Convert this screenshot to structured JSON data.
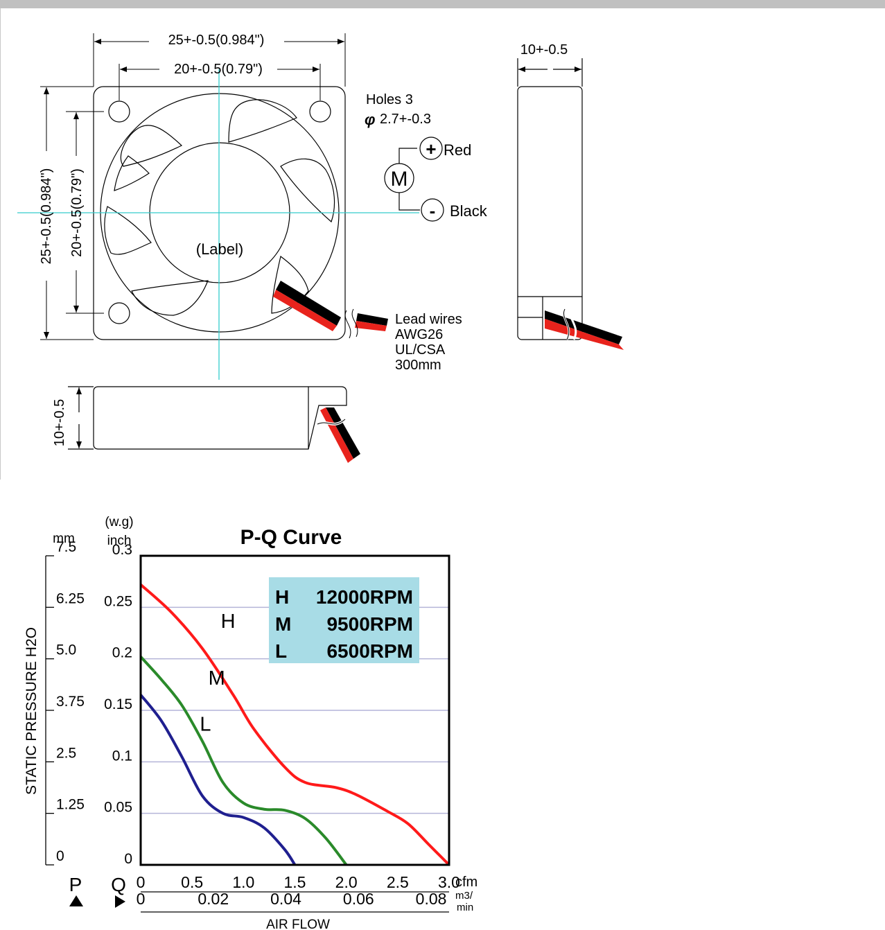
{
  "drawing": {
    "dim_width_outer": "25+-0.5(0.984\")",
    "dim_width_inner": "20+-0.5(0.79\")",
    "dim_height_outer": "25+-0.5(0.984\")",
    "dim_height_inner": "20+-0.5(0.79\")",
    "dim_depth_side": "10+-0.5",
    "dim_depth_bottom": "10+-0.5",
    "holes_label": "Holes 3",
    "holes_dim": "2.7+-0.3",
    "phi_symbol": "φ",
    "motor_symbol": "M",
    "plus_symbol": "+",
    "minus_symbol": "-",
    "red_label": "Red",
    "black_label": "Black",
    "hub_label": "(Label)",
    "lead_wires": [
      "Lead wires",
      "AWG26",
      "UL/CSA",
      "300mm"
    ]
  },
  "chart": {
    "unit_mm": "mm",
    "unit_wg": "(w.g)",
    "unit_inch": "inch",
    "legend": [
      {
        "key": "H",
        "rpm": "12000RPM"
      },
      {
        "key": "M",
        "rpm": "9500RPM"
      },
      {
        "key": "L",
        "rpm": "6500RPM"
      }
    ],
    "mm_ticks": [
      "7.5",
      "6.25",
      "5.0",
      "3.75",
      "2.5",
      "1.25",
      "0"
    ],
    "inch_ticks": [
      "0.3",
      "0.25",
      "0.2",
      "0.15",
      "0.1",
      "0.05",
      "0"
    ],
    "cfm_ticks": [
      "0",
      "0.5",
      "1.0",
      "1.5",
      "2.0",
      "2.5",
      "3.0"
    ],
    "m3_ticks": [
      "0",
      "0.02",
      "0.04",
      "0.06",
      "0.08"
    ],
    "cfm_unit": "cfm",
    "m3_unit_1": "m3/",
    "m3_unit_2": "min",
    "p_label": "P",
    "q_label": "Q"
  },
  "chart_data": {
    "type": "line",
    "title": "P-Q Curve",
    "xlabel": "AIR FLOW",
    "ylabel": "STATIC PRESSURE H2O",
    "x_unit": "cfm",
    "y_unit": "inch",
    "xlim": [
      0,
      3.0
    ],
    "ylim": [
      0,
      0.3
    ],
    "grid": true,
    "legend_position": "top-right",
    "series": [
      {
        "name": "H",
        "color": "#ff1a1a",
        "x": [
          0,
          0.3,
          0.6,
          0.9,
          1.1,
          1.4,
          1.6,
          1.9,
          2.1,
          2.4,
          2.6,
          2.8,
          3.0
        ],
        "y": [
          0.272,
          0.245,
          0.21,
          0.165,
          0.132,
          0.095,
          0.08,
          0.075,
          0.068,
          0.052,
          0.04,
          0.02,
          0
        ]
      },
      {
        "name": "M",
        "color": "#2a8a2a",
        "x": [
          0,
          0.2,
          0.4,
          0.6,
          0.8,
          1.0,
          1.2,
          1.4,
          1.6,
          1.8,
          2.0
        ],
        "y": [
          0.202,
          0.18,
          0.155,
          0.12,
          0.08,
          0.06,
          0.054,
          0.053,
          0.045,
          0.026,
          0
        ]
      },
      {
        "name": "L",
        "color": "#1f1f8f",
        "x": [
          0,
          0.2,
          0.4,
          0.6,
          0.8,
          1.0,
          1.2,
          1.4,
          1.5
        ],
        "y": [
          0.165,
          0.14,
          0.105,
          0.067,
          0.05,
          0.046,
          0.036,
          0.015,
          0
        ]
      }
    ]
  }
}
